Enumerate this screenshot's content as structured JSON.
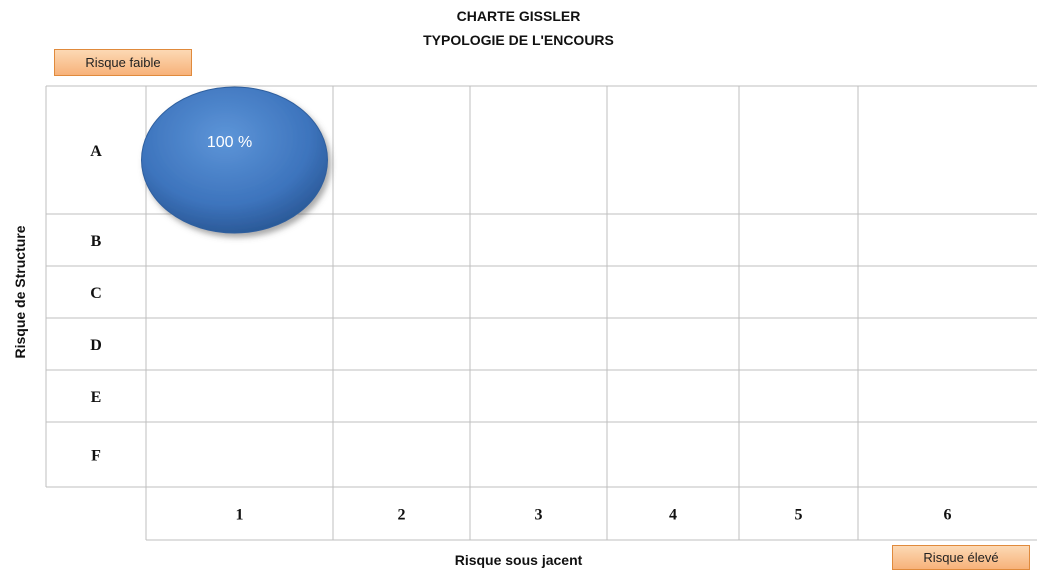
{
  "chart_data": {
    "type": "bubble-matrix",
    "title": "CHARTE GISSLER",
    "subtitle": "TYPOLOGIE DE L'ENCOURS",
    "xlabel": "Risque sous jacent",
    "ylabel": "Risque de Structure",
    "x_categories": [
      "1",
      "2",
      "3",
      "4",
      "5",
      "6"
    ],
    "y_categories": [
      "A",
      "B",
      "C",
      "D",
      "E",
      "F"
    ],
    "low_risk_label": "Risque faible",
    "high_risk_label": "Risque élevé",
    "bubbles": [
      {
        "x": "1",
        "y": "A",
        "value": 100,
        "label": "100 %"
      }
    ],
    "bubble_color": "#3d74bd"
  }
}
